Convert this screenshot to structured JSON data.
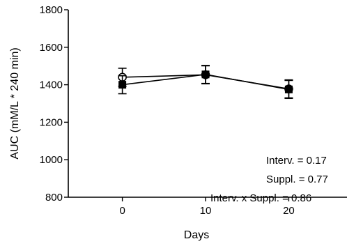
{
  "chart_data": {
    "type": "line",
    "xlabel": "Days",
    "ylabel": "AUC (mM/L * 240 min)",
    "ylim": [
      800,
      1800
    ],
    "yticks": [
      800,
      1000,
      1200,
      1400,
      1600,
      1800
    ],
    "xticks": [
      0,
      10,
      20
    ],
    "xlim": [
      -6.5,
      27
    ],
    "series": [
      {
        "marker": "open-circle",
        "x": [
          0,
          10,
          20
        ],
        "y": [
          1440,
          1453,
          1378
        ],
        "err": [
          48,
          48,
          48
        ]
      },
      {
        "marker": "filled-square",
        "x": [
          0,
          10,
          20
        ],
        "y": [
          1400,
          1455,
          1375
        ],
        "err": [
          48,
          48,
          48
        ]
      }
    ],
    "annotations": [
      "Interv. = 0.17",
      "Suppl. = 0.77",
      "Interv. x Suppl. = 0.86"
    ]
  }
}
